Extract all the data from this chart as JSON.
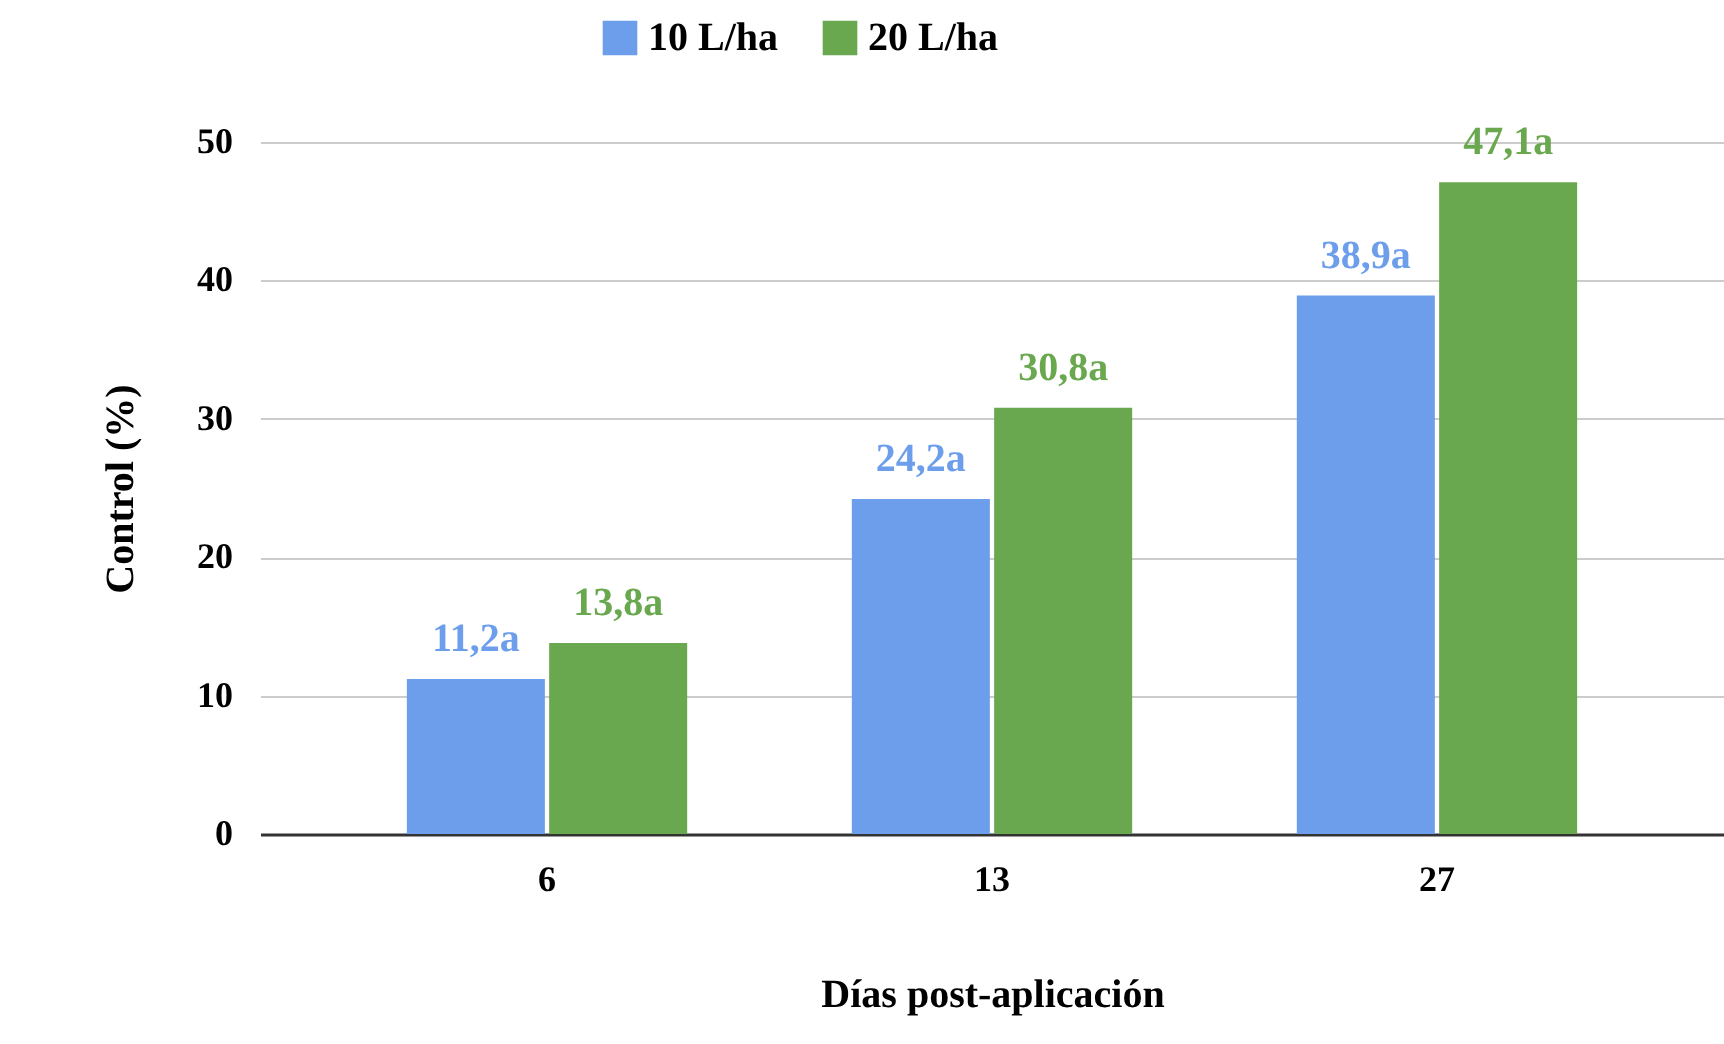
{
  "chart_data": {
    "type": "bar",
    "xlabel": "Días post-aplicación",
    "ylabel": "Control (%)",
    "categories": [
      "6",
      "13",
      "27"
    ],
    "series": [
      {
        "name": "10 L/ha",
        "color": "#6d9eeb",
        "values": [
          11.2,
          24.2,
          38.9
        ],
        "value_labels": [
          "11,2a",
          "24,2a",
          "38,9a"
        ]
      },
      {
        "name": "20 L/ha",
        "color": "#6aa84f",
        "values": [
          13.8,
          30.8,
          47.1
        ],
        "value_labels": [
          "13,8a",
          "30,8a",
          "47,1a"
        ]
      }
    ],
    "ylim": [
      0,
      50
    ],
    "yticks": [
      0,
      10,
      20,
      30,
      40,
      50
    ],
    "grid": "y",
    "legend": "top"
  }
}
